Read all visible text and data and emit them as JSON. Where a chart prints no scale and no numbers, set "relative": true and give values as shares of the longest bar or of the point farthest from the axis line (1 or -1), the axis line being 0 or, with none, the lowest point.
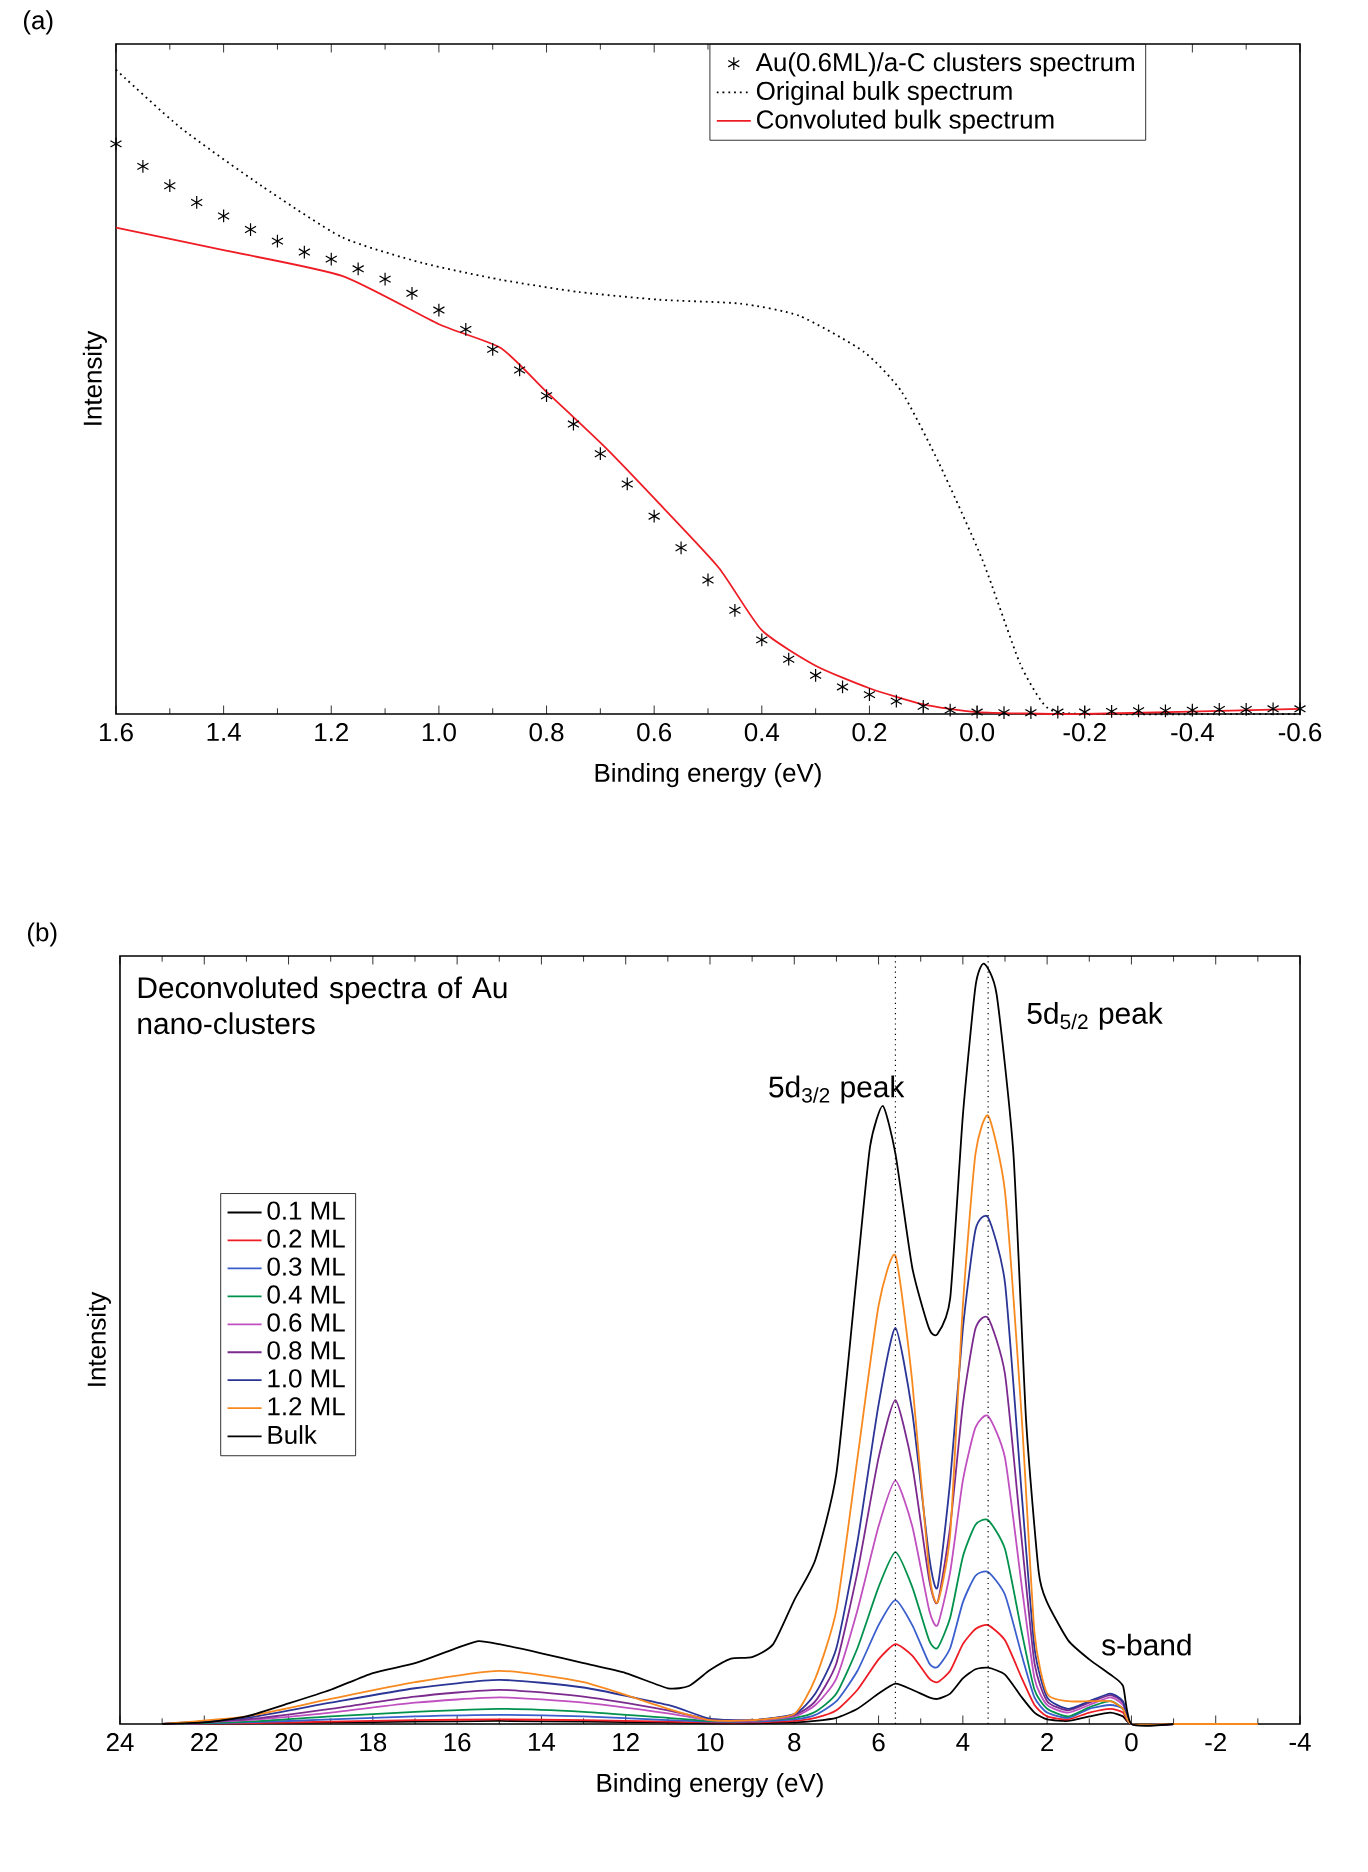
{
  "chart_data": [
    {
      "type": "line",
      "relative": true,
      "xlabel": "Binding energy (eV)",
      "ylabel": "Intensity",
      "xlim": [
        1.6,
        -0.6
      ],
      "xticks": [
        1.6,
        1.4,
        1.2,
        {
          "value": 1.0,
          "label": "1.0"
        },
        0.8,
        0.6,
        0.4,
        0.2,
        {
          "value": 0.0,
          "label": "0.0"
        },
        -0.2,
        -0.4,
        -0.6
      ],
      "tick_labels": "x",
      "legend": "top right",
      "annotations": [
        "(a)"
      ],
      "series": [
        {
          "name": "Au(0.6ML)/a-C clusters spectrum",
          "type": "scatter",
          "marker": "cross",
          "color": "#000000",
          "x": [
            1.6,
            1.55,
            1.5,
            1.45,
            1.4,
            1.35,
            1.3,
            1.25,
            1.2,
            1.15,
            1.1,
            1.05,
            1.0,
            0.95,
            0.9,
            0.85,
            0.8,
            0.75,
            0.7,
            0.65,
            0.6,
            0.55,
            0.5,
            0.45,
            0.4,
            0.35,
            0.3,
            0.25,
            0.2,
            0.15,
            0.1,
            0.05,
            0.0,
            -0.05,
            -0.1,
            -0.15,
            -0.2,
            -0.25,
            -0.3,
            -0.35,
            -0.4,
            -0.45,
            -0.5,
            -0.55,
            -0.6
          ],
          "values": [
            0.885,
            0.85,
            0.82,
            0.794,
            0.773,
            0.752,
            0.734,
            0.717,
            0.706,
            0.691,
            0.675,
            0.653,
            0.627,
            0.597,
            0.566,
            0.534,
            0.494,
            0.45,
            0.404,
            0.357,
            0.307,
            0.258,
            0.208,
            0.161,
            0.115,
            0.085,
            0.06,
            0.042,
            0.03,
            0.02,
            0.012,
            0.006,
            0.003,
            0.002,
            0.002,
            0.003,
            0.003,
            0.004,
            0.005,
            0.005,
            0.006,
            0.007,
            0.007,
            0.008,
            0.008
          ]
        },
        {
          "name": "Original bulk spectrum",
          "line_style": "dotted",
          "color": "#000000",
          "x": [
            1.6,
            1.48,
            1.33,
            1.18,
            1.03,
            0.885,
            0.74,
            0.59,
            0.44,
            0.33,
            0.21,
            0.14,
            0.07,
            -0.01,
            -0.08,
            -0.13,
            -0.2,
            -0.6
          ],
          "values": [
            1.0,
            0.91,
            0.82,
            0.74,
            0.7,
            0.674,
            0.655,
            0.643,
            0.637,
            0.618,
            0.562,
            0.5,
            0.388,
            0.239,
            0.078,
            0.01,
            0,
            0
          ]
        },
        {
          "name": "Convoluted bulk spectrum",
          "line_style": "solid",
          "color": "#ee1c24",
          "x": [
            1.6,
            1.4,
            1.18,
            1.0,
            0.885,
            0.8,
            0.69,
            0.59,
            0.48,
            0.4,
            0.3,
            0.2,
            0.1,
            0.0,
            -0.2,
            -0.6
          ],
          "values": [
            0.755,
            0.72,
            0.68,
            0.605,
            0.568,
            0.5,
            0.413,
            0.326,
            0.227,
            0.13,
            0.075,
            0.04,
            0.015,
            0.003,
            0,
            0.008
          ]
        }
      ]
    },
    {
      "type": "line",
      "relative": true,
      "xlabel": "Binding energy (eV)",
      "ylabel": "Intensity",
      "xlim": [
        24,
        -4
      ],
      "xticks": [
        24,
        22,
        20,
        18,
        16,
        14,
        12,
        10,
        8,
        6,
        4,
        2,
        0,
        -2,
        -4
      ],
      "tick_labels": "x",
      "legend": "left",
      "x": [
        23,
        21,
        19,
        17,
        15,
        13,
        11,
        10,
        9,
        8,
        7.5,
        7,
        6.5,
        6,
        5.6,
        5.2,
        4.8,
        4.6,
        4.3,
        4,
        3.7,
        3.4,
        3,
        2.6,
        2.3,
        2,
        1.5,
        1,
        0.5,
        0.2,
        0,
        -1
      ],
      "annotations": [
        "(b)",
        "Deconvoluted spectra of Au nano-clusters",
        {
          "text": "5d$_{3/2}$ peak",
          "x": 5.9,
          "y": 0.813
        },
        {
          "text": "5d$_{5/2}$ peak",
          "x": 3.5,
          "y": 1.0
        },
        {
          "text": "s-band",
          "x": 0.3,
          "y": 0.05
        }
      ],
      "ref_lines": [
        {
          "axis": "x",
          "value": 5.6,
          "line_style": "dotted",
          "color": "#000000"
        },
        {
          "axis": "x",
          "value": 3.4,
          "line_style": "dotted",
          "color": "#000000"
        }
      ],
      "series": [
        {
          "name": "0.1 ML",
          "color": "#000000",
          "values": [
            0,
            0.001,
            0.002,
            0.003,
            0.004,
            0.003,
            0.002,
            0.001,
            0.001,
            0.002,
            0.004,
            0.008,
            0.02,
            0.04,
            0.053,
            0.045,
            0.035,
            0.033,
            0.04,
            0.06,
            0.072,
            0.074,
            0.065,
            0.035,
            0.015,
            0.006,
            0.004,
            0.01,
            0.015,
            0.01,
            0,
            0
          ]
        },
        {
          "name": "0.2 ML",
          "color": "#ee1c24",
          "values": [
            0,
            0.001,
            0.003,
            0.005,
            0.006,
            0.005,
            0.003,
            0.002,
            0.002,
            0.004,
            0.008,
            0.018,
            0.045,
            0.085,
            0.105,
            0.09,
            0.06,
            0.055,
            0.07,
            0.105,
            0.125,
            0.13,
            0.11,
            0.06,
            0.025,
            0.01,
            0.006,
            0.015,
            0.02,
            0.015,
            0,
            0
          ]
        },
        {
          "name": "0.3 ML",
          "color": "#3a5fcd",
          "values": [
            0,
            0.002,
            0.006,
            0.01,
            0.012,
            0.01,
            0.005,
            0.003,
            0.003,
            0.006,
            0.012,
            0.03,
            0.07,
            0.13,
            0.163,
            0.13,
            0.08,
            0.075,
            0.1,
            0.16,
            0.195,
            0.2,
            0.17,
            0.09,
            0.035,
            0.015,
            0.008,
            0.02,
            0.025,
            0.02,
            0,
            0
          ]
        },
        {
          "name": "0.4 ML",
          "color": "#00914c",
          "values": [
            0,
            0.003,
            0.01,
            0.016,
            0.02,
            0.016,
            0.008,
            0.004,
            0.004,
            0.008,
            0.016,
            0.04,
            0.1,
            0.18,
            0.226,
            0.18,
            0.11,
            0.1,
            0.14,
            0.22,
            0.262,
            0.268,
            0.23,
            0.12,
            0.045,
            0.02,
            0.01,
            0.022,
            0.03,
            0.02,
            0,
            0
          ]
        },
        {
          "name": "0.6 ML",
          "color": "#c04fc0",
          "values": [
            0,
            0.005,
            0.015,
            0.028,
            0.035,
            0.028,
            0.014,
            0.005,
            0.004,
            0.01,
            0.025,
            0.06,
            0.15,
            0.26,
            0.32,
            0.26,
            0.15,
            0.13,
            0.2,
            0.32,
            0.39,
            0.405,
            0.35,
            0.18,
            0.06,
            0.025,
            0.015,
            0.025,
            0.035,
            0.025,
            0,
            0
          ]
        },
        {
          "name": "0.8 ML",
          "color": "#7b2a8e",
          "values": [
            0,
            0.006,
            0.02,
            0.036,
            0.045,
            0.036,
            0.018,
            0.006,
            0.005,
            0.012,
            0.03,
            0.08,
            0.2,
            0.35,
            0.426,
            0.34,
            0.19,
            0.16,
            0.26,
            0.42,
            0.52,
            0.534,
            0.46,
            0.24,
            0.08,
            0.03,
            0.018,
            0.028,
            0.038,
            0.028,
            0,
            0
          ]
        },
        {
          "name": "1.0 ML",
          "color": "#2b3596",
          "values": [
            0,
            0.008,
            0.028,
            0.047,
            0.058,
            0.048,
            0.025,
            0.007,
            0.005,
            0.013,
            0.04,
            0.1,
            0.24,
            0.42,
            0.521,
            0.41,
            0.22,
            0.18,
            0.32,
            0.52,
            0.65,
            0.666,
            0.58,
            0.3,
            0.1,
            0.035,
            0.02,
            0.03,
            0.04,
            0.03,
            0,
            0
          ]
        },
        {
          "name": "1.2 ML",
          "color": "#f7891f",
          "x": [
            23,
            21,
            19,
            17,
            15,
            13,
            11,
            10,
            9,
            8,
            7.5,
            7,
            6.5,
            6,
            5.6,
            5.2,
            4.8,
            4.6,
            4.3,
            4,
            3.7,
            3.4,
            3,
            2.6,
            2.3,
            2,
            1.5,
            1,
            0.5,
            0.2,
            0,
            -1,
            -3
          ],
          "values": [
            0,
            0.01,
            0.033,
            0.055,
            0.07,
            0.055,
            0.02,
            0.005,
            0.005,
            0.013,
            0.06,
            0.15,
            0.35,
            0.55,
            0.616,
            0.45,
            0.2,
            0.16,
            0.25,
            0.55,
            0.75,
            0.8,
            0.7,
            0.4,
            0.12,
            0.04,
            0.03,
            0.03,
            0.03,
            0.02,
            0,
            0,
            0
          ]
        },
        {
          "name": "Bulk",
          "color": "#000000",
          "x": [
            23,
            22,
            21,
            20,
            19,
            18,
            17,
            16,
            15.5,
            15,
            14,
            13,
            12,
            11,
            10.5,
            10,
            9.5,
            9,
            8.5,
            8,
            7.5,
            7,
            6.5,
            6.2,
            5.9,
            5.6,
            5.2,
            4.8,
            4.6,
            4.3,
            4,
            3.7,
            3.5,
            3.2,
            2.8,
            2.5,
            2.2,
            2,
            1.5,
            1,
            0.5,
            0.2,
            0,
            -1
          ],
          "values": [
            0,
            0.002,
            0.01,
            0.027,
            0.045,
            0.067,
            0.08,
            0.1,
            0.109,
            0.105,
            0.093,
            0.08,
            0.067,
            0.047,
            0.05,
            0.071,
            0.086,
            0.088,
            0.105,
            0.163,
            0.216,
            0.33,
            0.6,
            0.76,
            0.813,
            0.75,
            0.6,
            0.52,
            0.513,
            0.56,
            0.8,
            0.97,
            1.0,
            0.96,
            0.75,
            0.4,
            0.2,
            0.16,
            0.11,
            0.085,
            0.065,
            0.05,
            0,
            0
          ]
        }
      ]
    }
  ]
}
